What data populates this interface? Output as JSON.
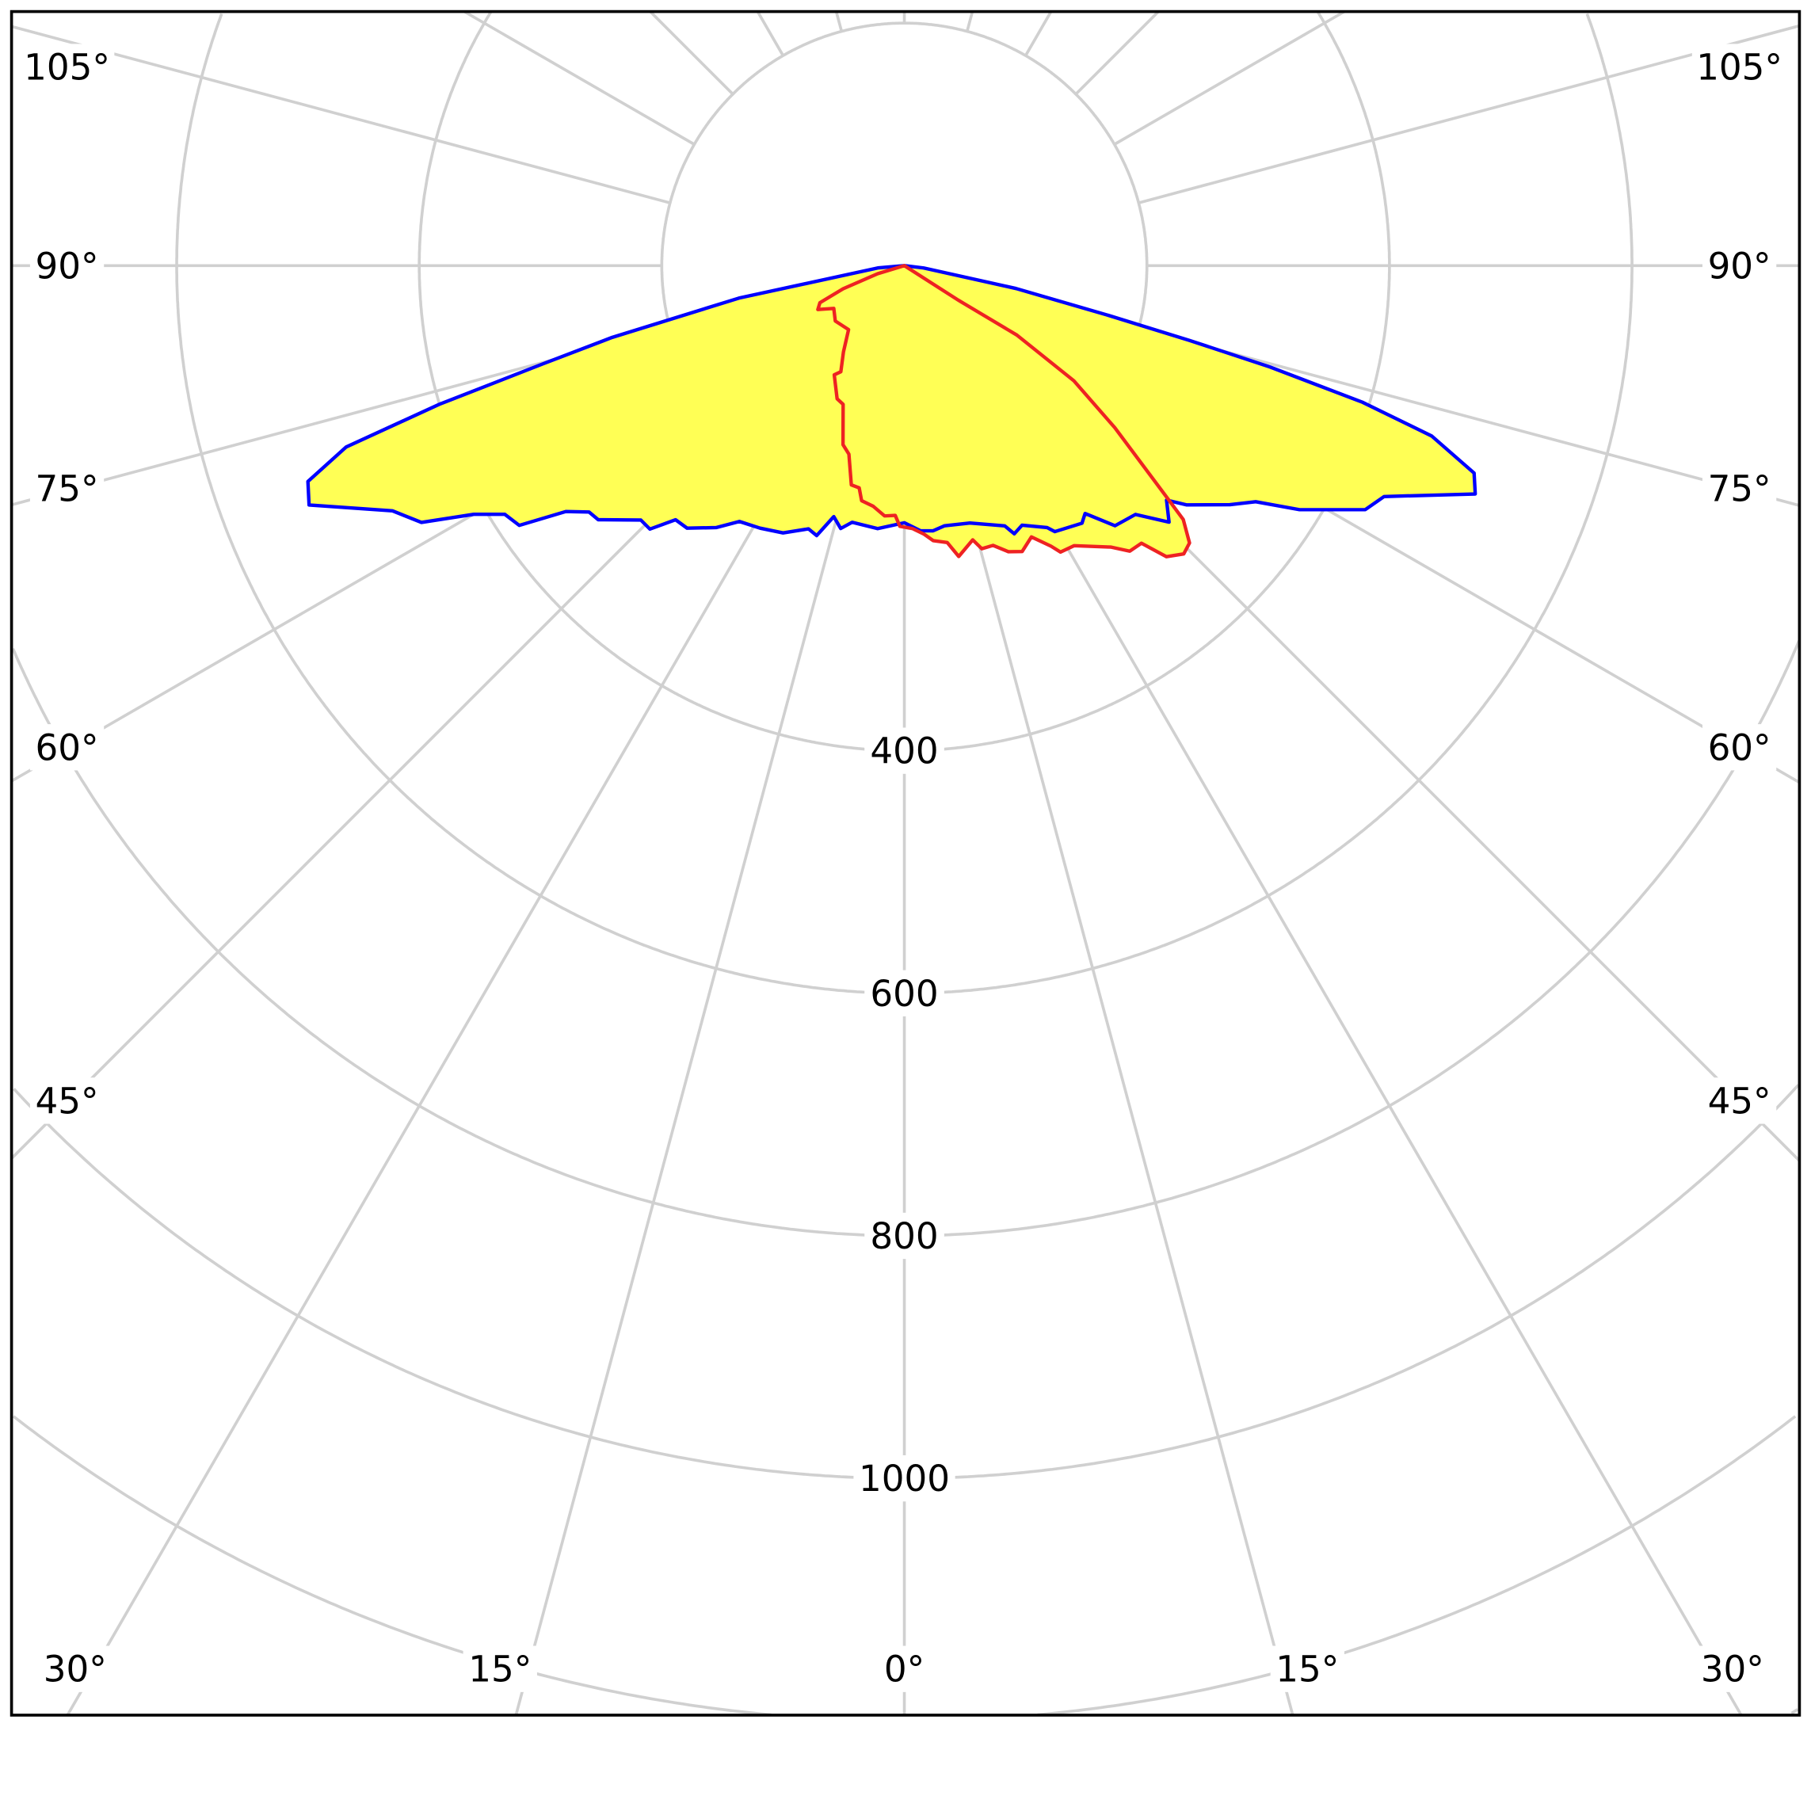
{
  "chart_data": {
    "type": "polar",
    "title": "",
    "radial_unit": "",
    "radial_ticks": [
      400,
      600,
      800,
      1000
    ],
    "radial_grid": [
      200,
      400,
      600,
      800,
      1000,
      1200,
      1400,
      1600
    ],
    "angle_step_deg": 15,
    "grid": true,
    "angle_labels": {
      "left": [
        "105°",
        "90°",
        "75°",
        "60°",
        "45°"
      ],
      "right": [
        "105°",
        "90°",
        "75°",
        "60°",
        "45°"
      ],
      "bottom": [
        "30°",
        "15°",
        "0°",
        "15°",
        "30°"
      ]
    },
    "fill_color": "#ffff55",
    "grid_color": "#d0d0d0",
    "series": [
      {
        "color": "#0000ff",
        "points": [
          [
            -85,
            22
          ],
          [
            -78.9,
            139
          ],
          [
            -76.2,
            248
          ],
          [
            -74.8,
            309
          ],
          [
            -73.4,
            400
          ],
          [
            -72,
            484
          ],
          [
            -70.1,
            523
          ],
          [
            -68.1,
            529
          ],
          [
            -64.4,
            468
          ],
          [
            -62,
            451
          ],
          [
            -60,
            410
          ],
          [
            -58.1,
            388
          ],
          [
            -56,
            383
          ],
          [
            -54,
            345
          ],
          [
            -52,
            330
          ],
          [
            -50.3,
            328
          ],
          [
            -46,
            302
          ],
          [
            -44,
            302
          ],
          [
            -42,
            282
          ],
          [
            -39.6,
            281
          ],
          [
            -35.7,
            266
          ],
          [
            -32.8,
            251
          ],
          [
            -28.8,
            247
          ],
          [
            -24.4,
            242
          ],
          [
            -20,
            231
          ],
          [
            -18,
            234
          ],
          [
            -15.7,
            215
          ],
          [
            -13.6,
            223
          ],
          [
            -11.5,
            216
          ],
          [
            -5.8,
            218
          ],
          [
            0,
            212
          ],
          [
            3.5,
            219
          ],
          [
            6.2,
            220
          ],
          [
            8.8,
            217
          ],
          [
            14.3,
            219
          ],
          [
            21.1,
            230
          ],
          [
            22.3,
            239
          ],
          [
            24.4,
            235
          ],
          [
            28.6,
            246
          ],
          [
            29.5,
            252
          ],
          [
            34.6,
            258
          ],
          [
            36.1,
            253
          ],
          [
            39,
            276
          ],
          [
            42.9,
            280
          ],
          [
            45.9,
            304
          ],
          [
            48.2,
            290
          ],
          [
            49.7,
            305
          ],
          [
            53.7,
            333
          ],
          [
            56.1,
            349
          ],
          [
            58.3,
            383
          ],
          [
            62.1,
            430
          ],
          [
            64.3,
            439
          ],
          [
            68.2,
            507
          ],
          [
            70,
            500
          ],
          [
            72.1,
            457
          ],
          [
            73.4,
            394
          ],
          [
            74.5,
            313
          ],
          [
            75.3,
            243
          ],
          [
            76.3,
            173
          ],
          [
            78.4,
            94
          ],
          [
            83.3,
            16
          ]
        ]
      },
      {
        "color": "#ee2222",
        "points": [
          [
            -73.1,
            23
          ],
          [
            -69.3,
            54
          ],
          [
            -66.3,
            76
          ],
          [
            -63.1,
            80
          ],
          [
            -58.8,
            68
          ],
          [
            -51.3,
            73
          ],
          [
            -41.1,
            70
          ],
          [
            -35.2,
            87
          ],
          [
            -30.9,
            102
          ],
          [
            -32.7,
            107
          ],
          [
            -26.8,
            123
          ],
          [
            -23.8,
            125
          ],
          [
            -18.9,
            156
          ],
          [
            -16.4,
            162
          ],
          [
            -13.6,
            186
          ],
          [
            -11.5,
            187
          ],
          [
            -10.3,
            197
          ],
          [
            -7.4,
            200
          ],
          [
            -4.5,
            207
          ],
          [
            -2.1,
            206
          ],
          [
            -1,
            215
          ],
          [
            1.8,
            217
          ],
          [
            4.2,
            222
          ],
          [
            6,
            228
          ],
          [
            8.8,
            231
          ],
          [
            10.6,
            244
          ],
          [
            14,
            233
          ],
          [
            15.3,
            242
          ],
          [
            17.6,
            242
          ],
          [
            20,
            251
          ],
          [
            22.4,
            255
          ],
          [
            25.1,
            247
          ],
          [
            27.6,
            261
          ],
          [
            28.6,
            269
          ],
          [
            31.2,
            270
          ],
          [
            36.3,
            288
          ],
          [
            38.3,
            300
          ],
          [
            40.5,
            301
          ],
          [
            42,
            323
          ],
          [
            44.1,
            331
          ],
          [
            45.8,
            328
          ],
          [
            47.7,
            311
          ],
          [
            48.6,
            288
          ],
          [
            52.4,
            219
          ],
          [
            55.8,
            169
          ],
          [
            58.3,
            109
          ],
          [
            57.4,
            53
          ]
        ]
      }
    ]
  }
}
